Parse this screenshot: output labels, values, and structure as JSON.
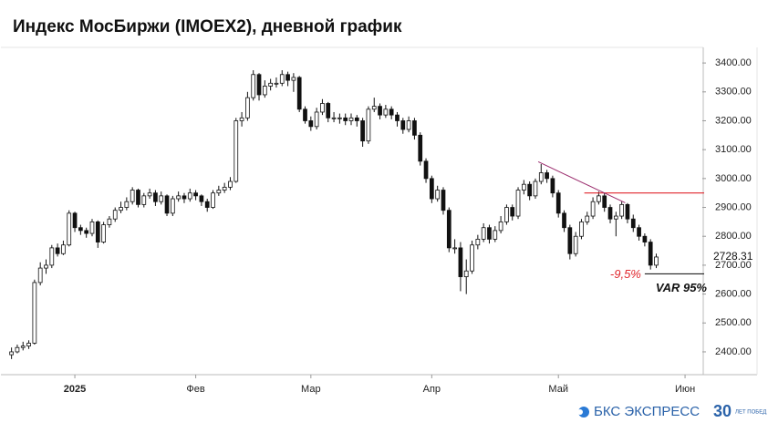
{
  "chart_data": {
    "type": "candlestick",
    "title": "Индекс МосБиржи (IMOEX2), дневной график",
    "xlim": [
      -2,
      120
    ],
    "xticks": [
      {
        "value": 11,
        "label": "2025"
      },
      {
        "value": 32,
        "label": "Фев"
      },
      {
        "value": 52,
        "label": "Мар"
      },
      {
        "value": 73,
        "label": "Апр"
      },
      {
        "value": 95,
        "label": "Май"
      },
      {
        "value": 117,
        "label": "Июн"
      }
    ],
    "ylim": [
      2321,
      3454
    ],
    "yticks": [
      {
        "value": 2400,
        "label": "2400.00"
      },
      {
        "value": 2500,
        "label": "2500.00"
      },
      {
        "value": 2600,
        "label": "2600.00"
      },
      {
        "value": 2700,
        "label": "2700.00"
      },
      {
        "value": 2800,
        "label": "2800.00"
      },
      {
        "value": 2900,
        "label": "2900.00"
      },
      {
        "value": 3000,
        "label": "3000.00"
      },
      {
        "value": 3100,
        "label": "3100.00"
      },
      {
        "value": 3200,
        "label": "3200.00"
      },
      {
        "value": 3300,
        "label": "3300.00"
      },
      {
        "value": 3400,
        "label": "3400.00"
      }
    ],
    "up_color": "#ffffff",
    "down_color": "#111111",
    "outline_color": "#111111",
    "open": [
      2390,
      2400,
      2415,
      2420,
      2430,
      2640,
      2690,
      2700,
      2760,
      2740,
      2770,
      2880,
      2830,
      2820,
      2810,
      2850,
      2780,
      2840,
      2860,
      2890,
      2900,
      2920,
      2960,
      2910,
      2940,
      2950,
      2920,
      2940,
      2880,
      2930,
      2940,
      2930,
      2950,
      2940,
      2920,
      2900,
      2950,
      2960,
      2970,
      2990,
      3200,
      3210,
      3280,
      3360,
      3290,
      3320,
      3330,
      3330,
      3360,
      3340,
      3350,
      3240,
      3200,
      3180,
      3230,
      3260,
      3210,
      3210,
      3210,
      3200,
      3210,
      3200,
      3130,
      3240,
      3250,
      3220,
      3240,
      3220,
      3200,
      3170,
      3200,
      3150,
      3060,
      3000,
      2930,
      2960,
      2890,
      2760,
      2760,
      2660,
      2680,
      2770,
      2790,
      2830,
      2790,
      2820,
      2850,
      2900,
      2870,
      2960,
      2980,
      2940,
      2990,
      3020,
      3000,
      2950,
      2880,
      2830,
      2740,
      2800,
      2850,
      2870,
      2920,
      2940,
      2900,
      2860,
      2870,
      2910,
      2860,
      2830,
      2800,
      2780,
      2700
    ],
    "high": [
      2415,
      2425,
      2435,
      2440,
      2650,
      2710,
      2720,
      2770,
      2775,
      2785,
      2890,
      2885,
      2840,
      2830,
      2860,
      2855,
      2850,
      2870,
      2900,
      2920,
      2935,
      2970,
      2965,
      2950,
      2965,
      2960,
      2955,
      2945,
      2940,
      2955,
      2950,
      2965,
      2960,
      2945,
      2930,
      2960,
      2975,
      2985,
      3005,
      3210,
      3230,
      3300,
      3375,
      3365,
      3340,
      3345,
      3350,
      3375,
      3370,
      3365,
      3355,
      3250,
      3215,
      3245,
      3275,
      3265,
      3230,
      3225,
      3225,
      3225,
      3220,
      3210,
      3250,
      3280,
      3260,
      3255,
      3250,
      3230,
      3210,
      3215,
      3210,
      3160,
      3070,
      3010,
      2975,
      2970,
      2900,
      2790,
      2780,
      2720,
      2785,
      2805,
      2845,
      2840,
      2835,
      2870,
      2910,
      2910,
      2970,
      2995,
      2990,
      3000,
      3050,
      3030,
      3010,
      2960,
      2890,
      2840,
      2815,
      2860,
      2885,
      2935,
      2955,
      2950,
      2910,
      2885,
      2920,
      2915,
      2875,
      2840,
      2810,
      2790,
      2740
    ],
    "low": [
      2375,
      2395,
      2405,
      2410,
      2425,
      2630,
      2670,
      2690,
      2730,
      2735,
      2765,
      2815,
      2805,
      2795,
      2800,
      2760,
      2775,
      2830,
      2850,
      2880,
      2890,
      2910,
      2900,
      2900,
      2930,
      2905,
      2910,
      2870,
      2870,
      2920,
      2915,
      2920,
      2925,
      2905,
      2885,
      2895,
      2940,
      2950,
      2960,
      2985,
      3180,
      3200,
      3270,
      3270,
      3280,
      3305,
      3315,
      3320,
      3320,
      3300,
      3230,
      3190,
      3165,
      3170,
      3220,
      3195,
      3195,
      3190,
      3185,
      3185,
      3180,
      3110,
      3120,
      3230,
      3205,
      3210,
      3205,
      3180,
      3155,
      3160,
      3135,
      3045,
      2985,
      2915,
      2920,
      2875,
      2745,
      2740,
      2610,
      2600,
      2670,
      2755,
      2780,
      2775,
      2780,
      2810,
      2840,
      2855,
      2860,
      2945,
      2925,
      2930,
      2980,
      2985,
      2935,
      2865,
      2815,
      2720,
      2730,
      2790,
      2840,
      2860,
      2910,
      2885,
      2845,
      2800,
      2860,
      2845,
      2815,
      2785,
      2765,
      2685,
      2690
    ],
    "close": [
      2400,
      2415,
      2420,
      2430,
      2640,
      2690,
      2700,
      2760,
      2740,
      2770,
      2880,
      2830,
      2820,
      2810,
      2850,
      2780,
      2840,
      2860,
      2890,
      2900,
      2920,
      2960,
      2910,
      2940,
      2950,
      2920,
      2940,
      2880,
      2930,
      2940,
      2930,
      2950,
      2940,
      2920,
      2900,
      2950,
      2960,
      2970,
      2990,
      3200,
      3210,
      3280,
      3360,
      3290,
      3320,
      3330,
      3330,
      3360,
      3340,
      3350,
      3240,
      3200,
      3180,
      3230,
      3260,
      3210,
      3210,
      3210,
      3200,
      3210,
      3200,
      3130,
      3240,
      3250,
      3220,
      3240,
      3220,
      3200,
      3170,
      3200,
      3150,
      3060,
      3000,
      2930,
      2960,
      2890,
      2760,
      2760,
      2660,
      2680,
      2770,
      2790,
      2830,
      2790,
      2820,
      2850,
      2900,
      2870,
      2960,
      2980,
      2940,
      2990,
      3020,
      3000,
      2950,
      2880,
      2830,
      2740,
      2800,
      2850,
      2870,
      2920,
      2940,
      2900,
      2860,
      2870,
      2910,
      2860,
      2830,
      2800,
      2780,
      2700,
      2728.31
    ],
    "level_line": {
      "value": 2950,
      "from": 99.5,
      "color": "#e0262c"
    },
    "trend_line": {
      "x": [
        91.5,
        106.6
      ],
      "y": [
        3058,
        2916
      ],
      "color": "#9b2d6e"
    },
    "var_line": {
      "value": 2670,
      "from": 110,
      "color": "#222222",
      "label": "-9,5%",
      "label_color": "#e0262c",
      "caption": "VAR 95%"
    },
    "brand": {
      "name": "БКС ЭКСПРЕСС",
      "badge": "30",
      "badge_caption": "ЛЕТ ПОБЕД"
    }
  }
}
